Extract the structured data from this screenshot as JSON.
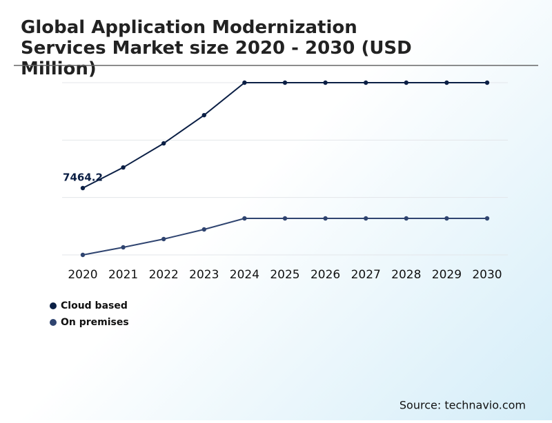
{
  "chart_data": {
    "type": "line",
    "title": "Global Application Modernization Services Market size 2020 - 2030 (USD Million)",
    "categories": [
      "2020",
      "2021",
      "2022",
      "2023",
      "2024",
      "2025",
      "2026",
      "2027",
      "2028",
      "2029",
      "2030"
    ],
    "series": [
      {
        "name": "Cloud based",
        "color": "#0b1f45",
        "values": [
          7464.2,
          9770,
          12460,
          15610,
          19240,
          19240,
          19240,
          19240,
          19240,
          19240,
          19240
        ],
        "value_labels": [
          "7464.2",
          null,
          null,
          null,
          null,
          null,
          null,
          null,
          null,
          null,
          null
        ]
      },
      {
        "name": "On premises",
        "color": "#2f4470",
        "values": [
          0,
          847,
          1770,
          2848,
          4079,
          4079,
          4079,
          4079,
          4079,
          4079,
          4079
        ]
      }
    ],
    "ylim": [
      0,
      19240
    ],
    "yticks": [
      0,
      6413,
      12827,
      19240
    ],
    "grid": true,
    "ytick_labels": false,
    "legend": "bottom-left",
    "source": "Source: technavio.com"
  }
}
